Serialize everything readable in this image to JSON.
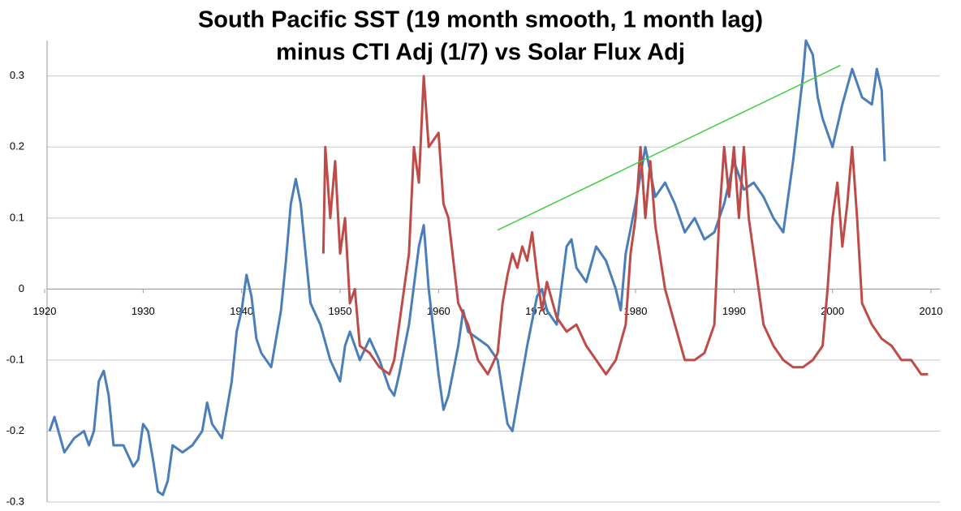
{
  "chart_data": {
    "type": "line",
    "title": [
      "South Pacific SST (19 month smooth, 1 month lag)",
      "minus CTI Adj (1/7) vs Solar Flux Adj"
    ],
    "xlim": [
      1920,
      2010
    ],
    "xticks": [
      1920,
      1930,
      1940,
      1950,
      1960,
      1970,
      1980,
      1990,
      2000,
      2010
    ],
    "ylim": [
      -0.3,
      0.35
    ],
    "yticks": [
      -0.3,
      -0.2,
      -0.1,
      0,
      0.1,
      0.2,
      0.3
    ],
    "grid": true,
    "series": [
      {
        "color": "#4a7ebb",
        "x": [
          1920.5,
          1921,
          1922,
          1923,
          1924,
          1924.5,
          1925,
          1925.5,
          1926,
          1926.5,
          1927,
          1928,
          1929,
          1929.5,
          1930,
          1930.5,
          1931,
          1931.5,
          1932,
          1932.5,
          1933,
          1934,
          1935,
          1936,
          1936.5,
          1937,
          1938,
          1939,
          1939.5,
          1940,
          1940.5,
          1941,
          1941.5,
          1942,
          1943,
          1944,
          1944.5,
          1945,
          1945.5,
          1946,
          1946.5,
          1947,
          1948,
          1949,
          1950,
          1950.5,
          1951,
          1952,
          1953,
          1954,
          1955,
          1955.5,
          1956,
          1957,
          1958,
          1958.5,
          1959,
          1960,
          1960.5,
          1961,
          1962,
          1962.5,
          1963,
          1964,
          1965,
          1966,
          1967,
          1967.5,
          1968,
          1969,
          1970,
          1970.5,
          1971,
          1972,
          1973,
          1973.5,
          1974,
          1975,
          1976,
          1977,
          1978,
          1978.5,
          1979,
          1980,
          1981,
          1982,
          1983,
          1984,
          1985,
          1986,
          1987,
          1988,
          1989,
          1990,
          1991,
          1992,
          1993,
          1994,
          1995,
          1996,
          1997,
          1997.3,
          1998,
          1998.5,
          1999,
          2000,
          2001,
          2002,
          2003,
          2004,
          2004.5,
          2005,
          2005.3
        ],
        "values": [
          -0.2,
          -0.18,
          -0.23,
          -0.21,
          -0.2,
          -0.22,
          -0.2,
          -0.13,
          -0.115,
          -0.15,
          -0.22,
          -0.22,
          -0.25,
          -0.24,
          -0.19,
          -0.2,
          -0.24,
          -0.285,
          -0.29,
          -0.27,
          -0.22,
          -0.23,
          -0.22,
          -0.2,
          -0.16,
          -0.19,
          -0.21,
          -0.13,
          -0.06,
          -0.03,
          0.02,
          -0.01,
          -0.07,
          -0.09,
          -0.11,
          -0.03,
          0.04,
          0.12,
          0.155,
          0.12,
          0.05,
          -0.02,
          -0.05,
          -0.1,
          -0.13,
          -0.08,
          -0.06,
          -0.1,
          -0.07,
          -0.1,
          -0.14,
          -0.15,
          -0.12,
          -0.05,
          0.06,
          0.09,
          0.0,
          -0.12,
          -0.17,
          -0.15,
          -0.08,
          -0.03,
          -0.06,
          -0.07,
          -0.08,
          -0.1,
          -0.19,
          -0.2,
          -0.16,
          -0.08,
          -0.01,
          0.0,
          -0.03,
          -0.05,
          0.06,
          0.07,
          0.03,
          0.01,
          0.06,
          0.04,
          0.0,
          -0.03,
          0.05,
          0.12,
          0.2,
          0.13,
          0.15,
          0.12,
          0.08,
          0.1,
          0.07,
          0.08,
          0.12,
          0.18,
          0.14,
          0.15,
          0.13,
          0.1,
          0.08,
          0.18,
          0.3,
          0.35,
          0.33,
          0.27,
          0.24,
          0.2,
          0.26,
          0.31,
          0.27,
          0.26,
          0.31,
          0.28,
          0.18
        ]
      },
      {
        "color": "#be4b48",
        "x": [
          1948.3,
          1948.5,
          1949,
          1949.5,
          1950,
          1950.5,
          1951,
          1951.5,
          1952,
          1953,
          1954,
          1955,
          1955.5,
          1956,
          1957,
          1957.5,
          1958,
          1958.5,
          1959,
          1960,
          1960.5,
          1961,
          1962,
          1963,
          1964,
          1965,
          1966,
          1966.5,
          1967,
          1967.5,
          1968,
          1968.5,
          1969,
          1969.5,
          1970,
          1970.5,
          1971,
          1972,
          1973,
          1974,
          1975,
          1976,
          1977,
          1978,
          1979,
          1979.5,
          1980,
          1980.5,
          1981,
          1981.5,
          1982,
          1983,
          1984,
          1985,
          1986,
          1987,
          1988,
          1988.5,
          1989,
          1989.5,
          1990,
          1990.5,
          1991,
          1991.5,
          1992,
          1993,
          1994,
          1995,
          1996,
          1997,
          1998,
          1999,
          1999.5,
          2000,
          2000.5,
          2001,
          2001.5,
          2002,
          2002.5,
          2003,
          2004,
          2005,
          2006,
          2007,
          2008,
          2009,
          2009.7
        ],
        "values": [
          0.05,
          0.2,
          0.1,
          0.18,
          0.05,
          0.1,
          -0.02,
          0.0,
          -0.08,
          -0.09,
          -0.11,
          -0.12,
          -0.1,
          -0.05,
          0.05,
          0.2,
          0.15,
          0.3,
          0.2,
          0.22,
          0.12,
          0.1,
          -0.02,
          -0.05,
          -0.1,
          -0.12,
          -0.09,
          -0.02,
          0.02,
          0.05,
          0.03,
          0.06,
          0.04,
          0.08,
          0.02,
          -0.03,
          0.01,
          -0.04,
          -0.06,
          -0.05,
          -0.08,
          -0.1,
          -0.12,
          -0.1,
          -0.05,
          0.05,
          0.1,
          0.2,
          0.1,
          0.18,
          0.09,
          0.0,
          -0.05,
          -0.1,
          -0.1,
          -0.09,
          -0.05,
          0.1,
          0.2,
          0.13,
          0.2,
          0.1,
          0.2,
          0.1,
          0.05,
          -0.05,
          -0.08,
          -0.1,
          -0.11,
          -0.11,
          -0.1,
          -0.08,
          0.0,
          0.1,
          0.15,
          0.06,
          0.12,
          0.2,
          0.1,
          -0.02,
          -0.05,
          -0.07,
          -0.08,
          -0.1,
          -0.1,
          -0.12,
          -0.12
        ]
      },
      {
        "color": "#3fcf3f",
        "x": [
          1966,
          2000.8
        ],
        "values": [
          0.083,
          0.315
        ]
      }
    ]
  }
}
